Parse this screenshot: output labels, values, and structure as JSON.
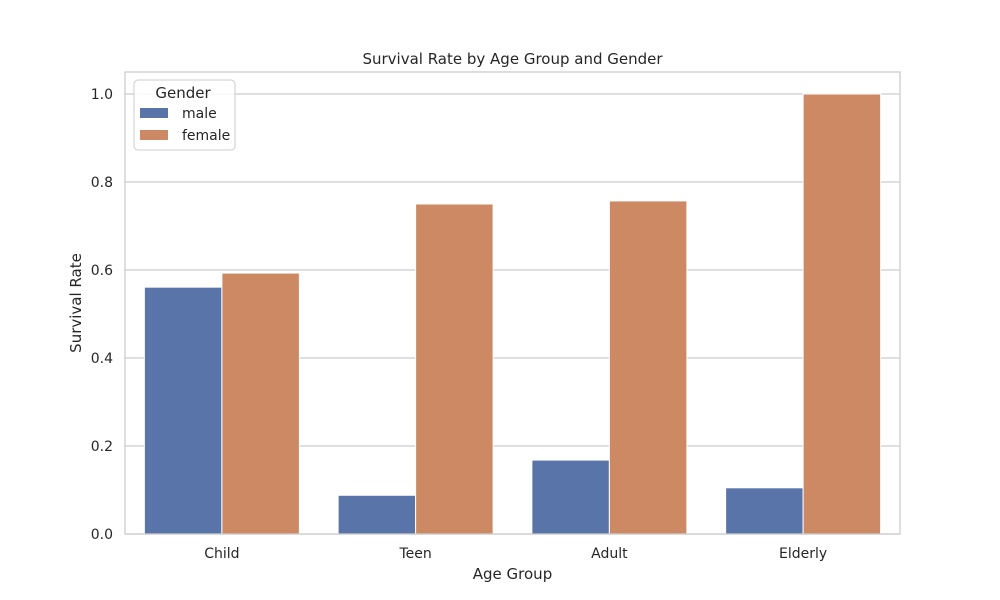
{
  "chart_data": {
    "type": "bar",
    "title": "Survival Rate by Age Group and Gender",
    "xlabel": "Age Group",
    "ylabel": "Survival Rate",
    "categories": [
      "Child",
      "Teen",
      "Adult",
      "Elderly"
    ],
    "series": [
      {
        "name": "male",
        "values": [
          0.561,
          0.088,
          0.168,
          0.105
        ],
        "color": "#5874a8"
      },
      {
        "name": "female",
        "values": [
          0.593,
          0.75,
          0.757,
          1.0
        ],
        "color": "#cc8963"
      }
    ],
    "ylim": [
      0,
      1.05
    ],
    "yticks": [
      0.0,
      0.2,
      0.4,
      0.6,
      0.8,
      1.0
    ],
    "ytick_labels": [
      "0.0",
      "0.2",
      "0.4",
      "0.6",
      "0.8",
      "1.0"
    ],
    "grid": "horizontal",
    "legend": {
      "title": "Gender",
      "placement": "top-left",
      "entries": [
        "male",
        "female"
      ]
    },
    "colors": {
      "grid": "#cccccc",
      "axes_border": "#cccccc",
      "text": "#262626"
    }
  }
}
